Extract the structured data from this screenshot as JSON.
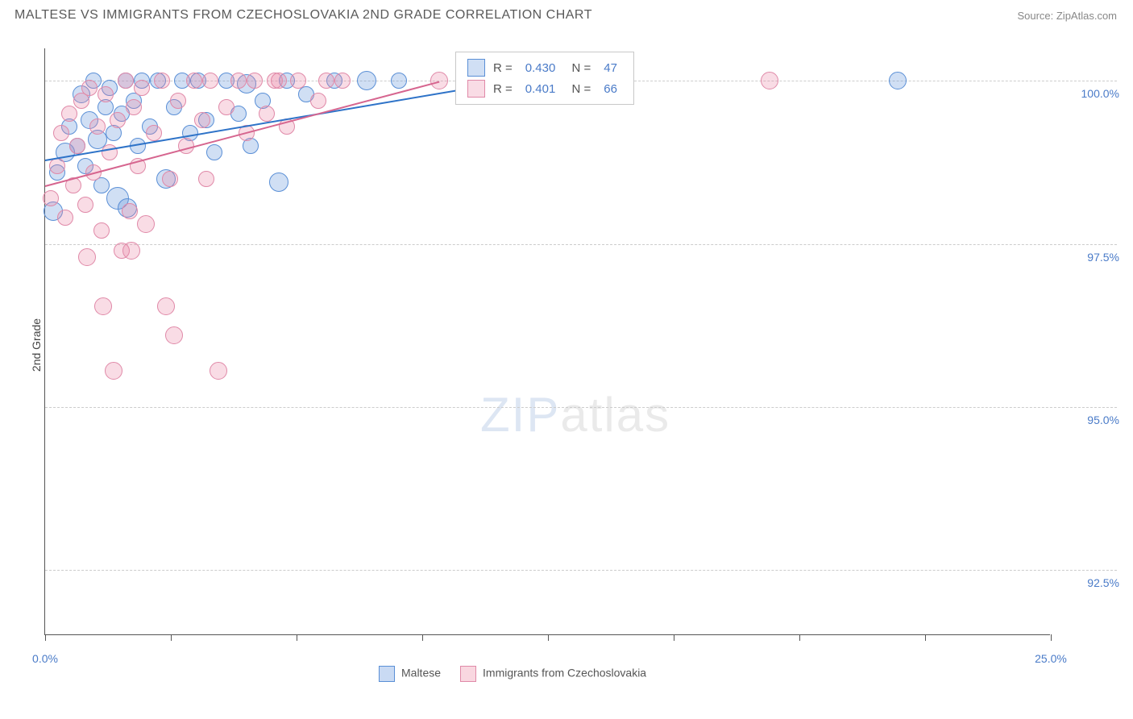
{
  "title": "MALTESE VS IMMIGRANTS FROM CZECHOSLOVAKIA 2ND GRADE CORRELATION CHART",
  "source": "Source: ZipAtlas.com",
  "y_axis_label": "2nd Grade",
  "watermark_a": "ZIP",
  "watermark_b": "atlas",
  "chart": {
    "type": "scatter",
    "x_range": [
      0,
      25
    ],
    "y_range": [
      91.5,
      100.5
    ],
    "y_ticks": [
      92.5,
      95.0,
      97.5,
      100.0
    ],
    "y_tick_labels": [
      "92.5%",
      "95.0%",
      "97.5%",
      "100.0%"
    ],
    "x_ticks": [
      0,
      3.125,
      6.25,
      9.375,
      12.5,
      15.625,
      18.75,
      21.875,
      25
    ],
    "x_tick_labels": {
      "0": "0.0%",
      "25": "25.0%"
    },
    "grid_color": "#cccccc",
    "axis_color": "#555555",
    "background_color": "#ffffff",
    "series": [
      {
        "name": "Maltese",
        "color_fill": "rgba(100,150,220,0.30)",
        "color_stroke": "#5a8fd6",
        "trend_color": "#2e73c8",
        "R": "0.430",
        "N": "47",
        "trend": {
          "x1": 0.0,
          "y1": 98.8,
          "x2": 10.5,
          "y2": 99.9
        },
        "points": [
          {
            "x": 0.2,
            "y": 98.0,
            "r": 12
          },
          {
            "x": 0.3,
            "y": 98.6,
            "r": 10
          },
          {
            "x": 0.5,
            "y": 98.9,
            "r": 12
          },
          {
            "x": 0.6,
            "y": 99.3,
            "r": 10
          },
          {
            "x": 0.8,
            "y": 99.0,
            "r": 10
          },
          {
            "x": 0.9,
            "y": 99.8,
            "r": 11
          },
          {
            "x": 1.0,
            "y": 98.7,
            "r": 10
          },
          {
            "x": 1.1,
            "y": 99.4,
            "r": 11
          },
          {
            "x": 1.2,
            "y": 100.0,
            "r": 10
          },
          {
            "x": 1.3,
            "y": 99.1,
            "r": 12
          },
          {
            "x": 1.4,
            "y": 98.4,
            "r": 10
          },
          {
            "x": 1.5,
            "y": 99.6,
            "r": 10
          },
          {
            "x": 1.6,
            "y": 99.9,
            "r": 10
          },
          {
            "x": 1.7,
            "y": 99.2,
            "r": 10
          },
          {
            "x": 1.8,
            "y": 98.2,
            "r": 14
          },
          {
            "x": 1.9,
            "y": 99.5,
            "r": 10
          },
          {
            "x": 2.0,
            "y": 100.0,
            "r": 10
          },
          {
            "x": 2.05,
            "y": 98.05,
            "r": 12
          },
          {
            "x": 2.2,
            "y": 99.7,
            "r": 10
          },
          {
            "x": 2.3,
            "y": 99.0,
            "r": 10
          },
          {
            "x": 2.4,
            "y": 100.0,
            "r": 10
          },
          {
            "x": 2.6,
            "y": 99.3,
            "r": 10
          },
          {
            "x": 2.8,
            "y": 100.0,
            "r": 10
          },
          {
            "x": 3.0,
            "y": 98.5,
            "r": 12
          },
          {
            "x": 3.2,
            "y": 99.6,
            "r": 10
          },
          {
            "x": 3.4,
            "y": 100.0,
            "r": 10
          },
          {
            "x": 3.6,
            "y": 99.2,
            "r": 10
          },
          {
            "x": 3.8,
            "y": 100.0,
            "r": 10
          },
          {
            "x": 4.0,
            "y": 99.4,
            "r": 10
          },
          {
            "x": 4.2,
            "y": 98.9,
            "r": 10
          },
          {
            "x": 4.5,
            "y": 100.0,
            "r": 10
          },
          {
            "x": 4.8,
            "y": 99.5,
            "r": 10
          },
          {
            "x": 5.0,
            "y": 99.95,
            "r": 12
          },
          {
            "x": 5.1,
            "y": 99.0,
            "r": 10
          },
          {
            "x": 5.4,
            "y": 99.7,
            "r": 10
          },
          {
            "x": 5.8,
            "y": 98.45,
            "r": 12
          },
          {
            "x": 6.0,
            "y": 100.0,
            "r": 10
          },
          {
            "x": 6.5,
            "y": 99.8,
            "r": 10
          },
          {
            "x": 7.2,
            "y": 100.0,
            "r": 10
          },
          {
            "x": 8.0,
            "y": 100.0,
            "r": 12
          },
          {
            "x": 8.8,
            "y": 100.0,
            "r": 10
          },
          {
            "x": 21.2,
            "y": 100.0,
            "r": 11
          }
        ]
      },
      {
        "name": "Immigrants from Czechoslovakia",
        "color_fill": "rgba(235,130,160,0.28)",
        "color_stroke": "#e089a8",
        "trend_color": "#d6658f",
        "R": "0.401",
        "N": "66",
        "trend": {
          "x1": 0.0,
          "y1": 98.4,
          "x2": 9.8,
          "y2": 100.0
        },
        "points": [
          {
            "x": 0.15,
            "y": 98.2,
            "r": 10
          },
          {
            "x": 0.3,
            "y": 98.7,
            "r": 10
          },
          {
            "x": 0.4,
            "y": 99.2,
            "r": 10
          },
          {
            "x": 0.5,
            "y": 97.9,
            "r": 10
          },
          {
            "x": 0.6,
            "y": 99.5,
            "r": 10
          },
          {
            "x": 0.7,
            "y": 98.4,
            "r": 10
          },
          {
            "x": 0.8,
            "y": 99.0,
            "r": 10
          },
          {
            "x": 0.9,
            "y": 99.7,
            "r": 10
          },
          {
            "x": 1.0,
            "y": 98.1,
            "r": 10
          },
          {
            "x": 1.05,
            "y": 97.3,
            "r": 11
          },
          {
            "x": 1.1,
            "y": 99.9,
            "r": 10
          },
          {
            "x": 1.2,
            "y": 98.6,
            "r": 10
          },
          {
            "x": 1.3,
            "y": 99.3,
            "r": 10
          },
          {
            "x": 1.4,
            "y": 97.7,
            "r": 10
          },
          {
            "x": 1.45,
            "y": 96.55,
            "r": 11
          },
          {
            "x": 1.5,
            "y": 99.8,
            "r": 10
          },
          {
            "x": 1.6,
            "y": 98.9,
            "r": 10
          },
          {
            "x": 1.7,
            "y": 95.55,
            "r": 11
          },
          {
            "x": 1.8,
            "y": 99.4,
            "r": 10
          },
          {
            "x": 1.9,
            "y": 97.4,
            "r": 10
          },
          {
            "x": 2.0,
            "y": 100.0,
            "r": 10
          },
          {
            "x": 2.1,
            "y": 98.0,
            "r": 10
          },
          {
            "x": 2.15,
            "y": 97.4,
            "r": 11
          },
          {
            "x": 2.2,
            "y": 99.6,
            "r": 10
          },
          {
            "x": 2.3,
            "y": 98.7,
            "r": 10
          },
          {
            "x": 2.4,
            "y": 99.9,
            "r": 10
          },
          {
            "x": 2.5,
            "y": 97.8,
            "r": 11
          },
          {
            "x": 2.7,
            "y": 99.2,
            "r": 10
          },
          {
            "x": 2.9,
            "y": 100.0,
            "r": 10
          },
          {
            "x": 3.0,
            "y": 96.55,
            "r": 11
          },
          {
            "x": 3.1,
            "y": 98.5,
            "r": 10
          },
          {
            "x": 3.2,
            "y": 96.1,
            "r": 11
          },
          {
            "x": 3.3,
            "y": 99.7,
            "r": 10
          },
          {
            "x": 3.5,
            "y": 99.0,
            "r": 10
          },
          {
            "x": 3.7,
            "y": 100.0,
            "r": 10
          },
          {
            "x": 3.9,
            "y": 99.4,
            "r": 10
          },
          {
            "x": 4.0,
            "y": 98.5,
            "r": 10
          },
          {
            "x": 4.1,
            "y": 100.0,
            "r": 10
          },
          {
            "x": 4.3,
            "y": 95.55,
            "r": 11
          },
          {
            "x": 4.5,
            "y": 99.6,
            "r": 10
          },
          {
            "x": 4.8,
            "y": 100.0,
            "r": 10
          },
          {
            "x": 5.0,
            "y": 99.2,
            "r": 10
          },
          {
            "x": 5.2,
            "y": 100.0,
            "r": 10
          },
          {
            "x": 5.5,
            "y": 99.5,
            "r": 10
          },
          {
            "x": 5.8,
            "y": 100.0,
            "r": 10
          },
          {
            "x": 6.0,
            "y": 99.3,
            "r": 10
          },
          {
            "x": 5.7,
            "y": 100.0,
            "r": 10
          },
          {
            "x": 6.3,
            "y": 100.0,
            "r": 10
          },
          {
            "x": 6.8,
            "y": 99.7,
            "r": 10
          },
          {
            "x": 7.0,
            "y": 100.0,
            "r": 10
          },
          {
            "x": 7.4,
            "y": 100.0,
            "r": 10
          },
          {
            "x": 9.8,
            "y": 100.0,
            "r": 11
          },
          {
            "x": 18.0,
            "y": 100.0,
            "r": 11
          }
        ]
      }
    ]
  },
  "legend_bottom": [
    {
      "label": "Maltese",
      "fill": "rgba(100,150,220,0.35)",
      "stroke": "#5a8fd6"
    },
    {
      "label": "Immigrants from Czechoslovakia",
      "fill": "rgba(235,130,160,0.32)",
      "stroke": "#e089a8"
    }
  ]
}
